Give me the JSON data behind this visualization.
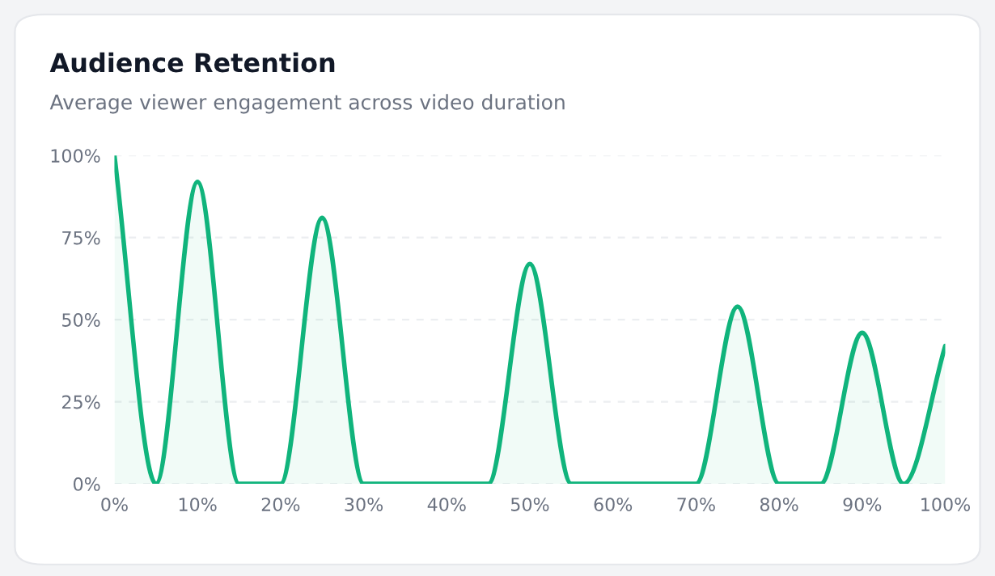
{
  "chart_data": {
    "type": "area",
    "title": "Audience Retention",
    "subtitle": "Average viewer engagement across video duration",
    "x": [
      0,
      5,
      10,
      15,
      20,
      25,
      30,
      35,
      40,
      45,
      50,
      55,
      60,
      65,
      70,
      75,
      80,
      85,
      90,
      95,
      100
    ],
    "series": [
      {
        "color": "#10b47c",
        "values": [
          100,
          0,
          92,
          0,
          0,
          81,
          0,
          0,
          0,
          0,
          67,
          0,
          0,
          0,
          0,
          54,
          0,
          0,
          46,
          0,
          42
        ]
      }
    ],
    "xlim": [
      0,
      100
    ],
    "xticks": [
      {
        "value": 0,
        "label": "0%"
      },
      {
        "value": 10,
        "label": "10%"
      },
      {
        "value": 20,
        "label": "20%"
      },
      {
        "value": 30,
        "label": "30%"
      },
      {
        "value": 40,
        "label": "40%"
      },
      {
        "value": 50,
        "label": "50%"
      },
      {
        "value": 60,
        "label": "60%"
      },
      {
        "value": 70,
        "label": "70%"
      },
      {
        "value": 80,
        "label": "80%"
      },
      {
        "value": 90,
        "label": "90%"
      },
      {
        "value": 100,
        "label": "100%"
      }
    ],
    "ylim": [
      0,
      100
    ],
    "yticks": [
      {
        "value": 0,
        "label": "0%"
      },
      {
        "value": 25,
        "label": "25%"
      },
      {
        "value": 50,
        "label": "50%"
      },
      {
        "value": 75,
        "label": "75%"
      },
      {
        "value": 100,
        "label": "100%"
      }
    ],
    "grid": "y",
    "line_style": "solid"
  }
}
